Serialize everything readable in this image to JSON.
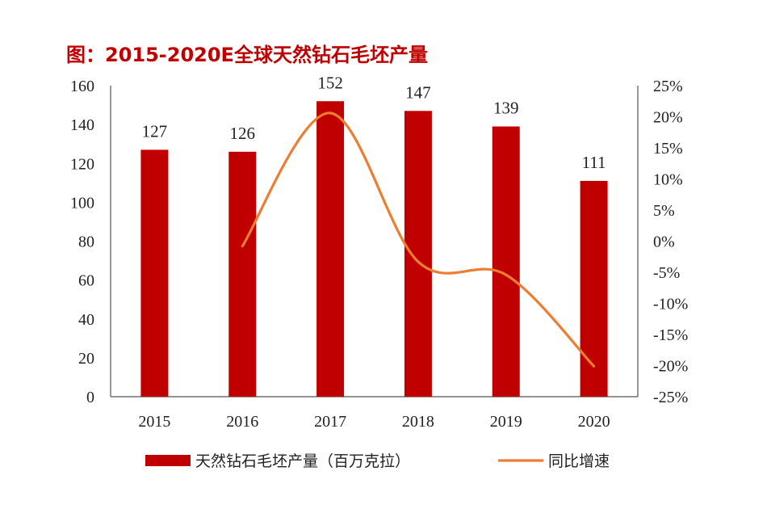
{
  "title": "图：2015-2020E全球天然钻石毛坯产量",
  "chart_data": {
    "type": "bar+line",
    "categories": [
      "2015",
      "2016",
      "2017",
      "2018",
      "2019",
      "2020"
    ],
    "series": [
      {
        "name": "天然钻石毛坯产量（百万克拉）",
        "type": "bar",
        "axis": "left",
        "values": [
          127,
          126,
          152,
          147,
          139,
          111
        ],
        "color": "#c00000"
      },
      {
        "name": "同比增速",
        "type": "line",
        "axis": "right",
        "values": [
          null,
          -0.8,
          20.6,
          -3.3,
          -5.4,
          -20.1
        ],
        "color": "#ed7d31"
      }
    ],
    "data_labels": [
      "127",
      "126",
      "152",
      "147",
      "139",
      "111"
    ],
    "y_left": {
      "min": 0,
      "max": 160,
      "step": 20,
      "ticks": [
        "0",
        "20",
        "40",
        "60",
        "80",
        "100",
        "120",
        "140",
        "160"
      ]
    },
    "y_right": {
      "min": -25,
      "max": 25,
      "step": 5,
      "ticks": [
        "-25%",
        "-20%",
        "-15%",
        "-10%",
        "-5%",
        "0%",
        "5%",
        "10%",
        "15%",
        "20%",
        "25%"
      ]
    },
    "legend_position": "bottom",
    "grid": false
  }
}
